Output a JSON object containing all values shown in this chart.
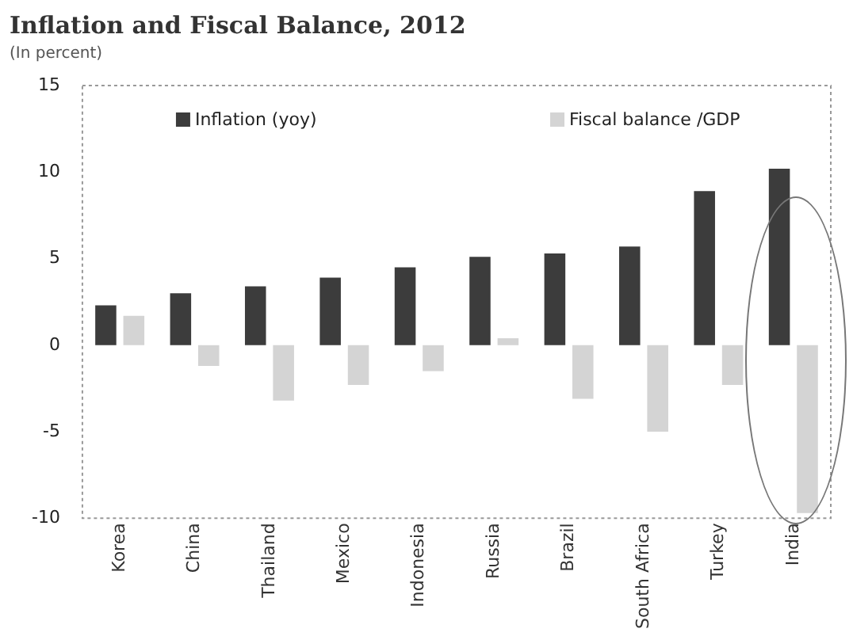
{
  "chart_data": {
    "type": "bar",
    "title": "Inflation and Fiscal Balance, 2012",
    "subtitle": "(In percent)",
    "categories": [
      "Korea",
      "China",
      "Thailand",
      "Mexico",
      "Indonesia",
      "Russia",
      "Brazil",
      "South Africa",
      "Turkey",
      "India"
    ],
    "series": [
      {
        "name": "Inflation (yoy)",
        "color": "#3c3c3c",
        "values": [
          2.3,
          3.0,
          3.4,
          3.9,
          4.5,
          5.1,
          5.3,
          5.7,
          8.9,
          10.2
        ]
      },
      {
        "name": "Fiscal balance /GDP",
        "color": "#d4d4d4",
        "values": [
          1.7,
          -1.2,
          -3.2,
          -2.3,
          -1.5,
          0.4,
          -3.1,
          -5.0,
          -2.3,
          -9.7
        ]
      }
    ],
    "ylim": [
      -10,
      15
    ],
    "yticks": [
      -10,
      -5,
      0,
      5,
      10,
      15
    ],
    "grid": false,
    "legend": "top"
  }
}
